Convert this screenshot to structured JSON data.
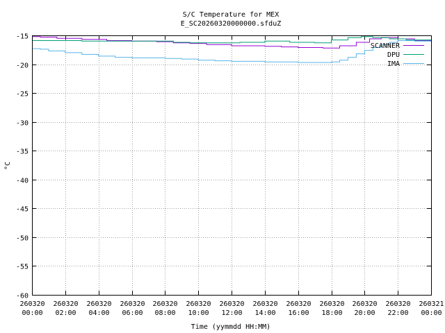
{
  "chart_data": {
    "type": "line",
    "title": "S/C Temperature for MEX",
    "subtitle": "E_SC20260320000000.sfduZ",
    "xlabel": "Time (yymmdd HH:MM)",
    "ylabel": "°C",
    "xlim": [
      0,
      24
    ],
    "ylim": [
      -60,
      -15
    ],
    "yticks": [
      -15,
      -20,
      -25,
      -30,
      -35,
      -40,
      -45,
      -50,
      -55,
      -60
    ],
    "yticklabels": [
      "-15",
      "-20",
      "-25",
      "-30",
      "-35",
      "-40",
      "-45",
      "-50",
      "-55",
      "-60"
    ],
    "xticks": [
      0,
      2,
      4,
      6,
      8,
      10,
      12,
      14,
      16,
      18,
      20,
      22,
      24
    ],
    "xticklabels": [
      [
        "260320",
        "00:00"
      ],
      [
        "260320",
        "02:00"
      ],
      [
        "260320",
        "04:00"
      ],
      [
        "260320",
        "06:00"
      ],
      [
        "260320",
        "08:00"
      ],
      [
        "260320",
        "10:00"
      ],
      [
        "260320",
        "12:00"
      ],
      [
        "260320",
        "14:00"
      ],
      [
        "260320",
        "16:00"
      ],
      [
        "260320",
        "18:00"
      ],
      [
        "260320",
        "20:00"
      ],
      [
        "260320",
        "22:00"
      ],
      [
        "260321",
        "00:00"
      ]
    ],
    "grid": true,
    "legend_position": "top-right",
    "series": [
      {
        "name": "SCANNER",
        "color": "#9400d3",
        "x": [
          0,
          0.5,
          1.5,
          3,
          4.5,
          6,
          7.5,
          8.5,
          9.5,
          10.5,
          12,
          14,
          15,
          16,
          17.5,
          18.5,
          19.5,
          20.3,
          21,
          22,
          23,
          24
        ],
        "y": [
          -15.2,
          -15.3,
          -15.5,
          -15.7,
          -15.9,
          -16.0,
          -16.1,
          -16.3,
          -16.4,
          -16.6,
          -16.8,
          -16.9,
          -17.0,
          -17.1,
          -17.2,
          -16.8,
          -16.2,
          -15.6,
          -15.4,
          -15.6,
          -15.9,
          -16.0
        ]
      },
      {
        "name": "DPU",
        "color": "#009e73",
        "x": [
          0,
          1,
          3,
          5,
          7,
          8.5,
          9.5,
          11,
          12.5,
          14,
          15.5,
          17,
          18,
          19,
          19.8,
          20.5,
          21.5,
          22.5,
          24
        ],
        "y": [
          -15.9,
          -15.9,
          -16.0,
          -16.0,
          -16.0,
          -16.2,
          -16.3,
          -16.3,
          -16.2,
          -16.0,
          -16.2,
          -16.3,
          -15.8,
          -15.4,
          -15.2,
          -15.4,
          -15.6,
          -15.8,
          -15.9
        ]
      },
      {
        "name": "IMA",
        "color": "#56b4e9",
        "x": [
          0,
          0.5,
          1,
          2,
          3,
          4,
          5,
          6,
          7,
          8,
          9,
          10,
          11,
          12,
          13,
          14,
          15,
          16,
          17,
          18,
          18.5,
          19,
          19.5,
          20,
          20.5,
          21,
          21.5,
          22,
          23,
          24
        ],
        "y": [
          -17.3,
          -17.4,
          -17.7,
          -18.0,
          -18.3,
          -18.6,
          -18.8,
          -18.9,
          -18.9,
          -19.0,
          -19.1,
          -19.3,
          -19.4,
          -19.5,
          -19.5,
          -19.6,
          -19.6,
          -19.7,
          -19.7,
          -19.6,
          -19.3,
          -18.8,
          -18.2,
          -17.6,
          -17.1,
          -16.6,
          -16.2,
          -15.9,
          -16.0,
          -16.1
        ]
      }
    ]
  }
}
